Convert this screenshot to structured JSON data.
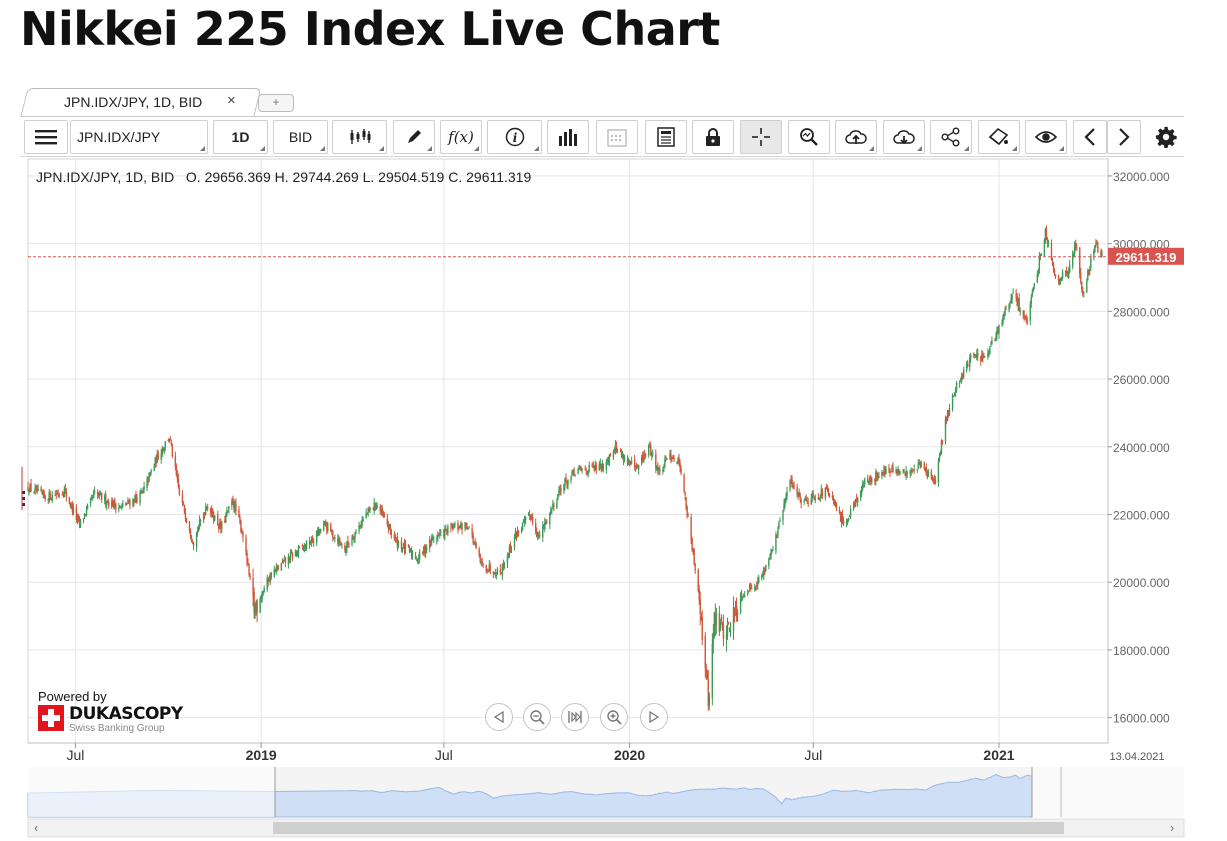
{
  "page": {
    "title": "Nikkei 225 Index Live Chart"
  },
  "tab": {
    "label": "JPN.IDX/JPY, 1D, BID",
    "close": "×",
    "add": "+"
  },
  "toolbar": {
    "symbol": "JPN.IDX/JPY",
    "period": "1D",
    "side": "BID",
    "icons": [
      "menu-icon",
      "candlestick-icon",
      "pencil-icon",
      "function-icon",
      "info-icon",
      "volume-bars-icon",
      "calendar-icon",
      "news-icon",
      "lock-icon",
      "crosshair-icon",
      "zoom-icon",
      "upload-icon",
      "download-icon",
      "share-icon",
      "theme-icon",
      "eye-icon",
      "arrow-left-icon",
      "arrow-right-icon",
      "gear-icon"
    ],
    "function_label": "f(x)",
    "info_label": "i"
  },
  "ohlc": {
    "text": "JPN.IDX/JPY, 1D, BID   O. 29656.369 H. 29744.269 L. 29504.519 C. 29611.319"
  },
  "branding": {
    "powered_by": "Powered by",
    "name": "DUKASCOPY",
    "sub": "Swiss Banking Group"
  },
  "colors": {
    "up": "#3c9a56",
    "down": "#d0573a",
    "last": "#d9534f",
    "navigator": "#cfdff5"
  },
  "chart_data": {
    "type": "candlestick",
    "series_name": "JPN.IDX/JPY",
    "last_price": 29611.319,
    "last_price_label": "29611.319",
    "last_date": "13.04.2021",
    "ylim": [
      15250,
      32500
    ],
    "yticks": [
      {
        "v": 16000,
        "label": "16000.000"
      },
      {
        "v": 18000,
        "label": "18000.000"
      },
      {
        "v": 20000,
        "label": "20000.000"
      },
      {
        "v": 22000,
        "label": "22000.000"
      },
      {
        "v": 24000,
        "label": "24000.000"
      },
      {
        "v": 26000,
        "label": "26000.000"
      },
      {
        "v": 28000,
        "label": "28000.000"
      },
      {
        "v": 30000,
        "label": "30000.000"
      },
      {
        "v": 32000,
        "label": "32000.000"
      }
    ],
    "xlim": [
      "2018-05-15",
      "2021-04-19"
    ],
    "xticks": [
      {
        "date": "2018-07-01",
        "label": "Jul",
        "bold": false
      },
      {
        "date": "2019-01-01",
        "label": "2019",
        "bold": true
      },
      {
        "date": "2019-07-01",
        "label": "Jul",
        "bold": false
      },
      {
        "date": "2020-01-01",
        "label": "2020",
        "bold": true
      },
      {
        "date": "2020-07-01",
        "label": "Jul",
        "bold": false
      },
      {
        "date": "2021-01-01",
        "label": "2021",
        "bold": true
      }
    ],
    "x_end_label": "13.04.2021",
    "path": [
      {
        "date": "2018-05-15",
        "close": 22800
      },
      {
        "date": "2018-06-01",
        "close": 22500
      },
      {
        "date": "2018-06-20",
        "close": 22700
      },
      {
        "date": "2018-07-05",
        "close": 21700
      },
      {
        "date": "2018-07-20",
        "close": 22600
      },
      {
        "date": "2018-08-15",
        "close": 22200
      },
      {
        "date": "2018-09-05",
        "close": 22600
      },
      {
        "date": "2018-09-20",
        "close": 23700
      },
      {
        "date": "2018-10-02",
        "close": 24300
      },
      {
        "date": "2018-10-12",
        "close": 22600
      },
      {
        "date": "2018-10-26",
        "close": 21200
      },
      {
        "date": "2018-11-08",
        "close": 22300
      },
      {
        "date": "2018-11-22",
        "close": 21600
      },
      {
        "date": "2018-12-04",
        "close": 22400
      },
      {
        "date": "2018-12-14",
        "close": 21400
      },
      {
        "date": "2018-12-25",
        "close": 19200
      },
      {
        "date": "2019-01-10",
        "close": 20200
      },
      {
        "date": "2019-02-01",
        "close": 20800
      },
      {
        "date": "2019-02-20",
        "close": 21200
      },
      {
        "date": "2019-03-05",
        "close": 21700
      },
      {
        "date": "2019-03-25",
        "close": 21000
      },
      {
        "date": "2019-04-15",
        "close": 22000
      },
      {
        "date": "2019-04-25",
        "close": 22300
      },
      {
        "date": "2019-05-15",
        "close": 21200
      },
      {
        "date": "2019-06-05",
        "close": 20700
      },
      {
        "date": "2019-06-20",
        "close": 21300
      },
      {
        "date": "2019-07-10",
        "close": 21600
      },
      {
        "date": "2019-07-25",
        "close": 21700
      },
      {
        "date": "2019-08-07",
        "close": 20500
      },
      {
        "date": "2019-08-26",
        "close": 20300
      },
      {
        "date": "2019-09-10",
        "close": 21400
      },
      {
        "date": "2019-09-25",
        "close": 22000
      },
      {
        "date": "2019-10-03",
        "close": 21300
      },
      {
        "date": "2019-10-25",
        "close": 22800
      },
      {
        "date": "2019-11-10",
        "close": 23300
      },
      {
        "date": "2019-12-05",
        "close": 23400
      },
      {
        "date": "2019-12-17",
        "close": 24000
      },
      {
        "date": "2020-01-08",
        "close": 23300
      },
      {
        "date": "2020-01-20",
        "close": 24000
      },
      {
        "date": "2020-01-31",
        "close": 23200
      },
      {
        "date": "2020-02-10",
        "close": 23800
      },
      {
        "date": "2020-02-20",
        "close": 23500
      },
      {
        "date": "2020-03-02",
        "close": 21200
      },
      {
        "date": "2020-03-10",
        "close": 19600
      },
      {
        "date": "2020-03-19",
        "close": 16500
      },
      {
        "date": "2020-03-25",
        "close": 18900
      },
      {
        "date": "2020-04-06",
        "close": 18500
      },
      {
        "date": "2020-04-20",
        "close": 19600
      },
      {
        "date": "2020-05-10",
        "close": 20100
      },
      {
        "date": "2020-05-25",
        "close": 21300
      },
      {
        "date": "2020-06-08",
        "close": 23000
      },
      {
        "date": "2020-06-20",
        "close": 22400
      },
      {
        "date": "2020-07-15",
        "close": 22700
      },
      {
        "date": "2020-07-31",
        "close": 21700
      },
      {
        "date": "2020-08-20",
        "close": 22900
      },
      {
        "date": "2020-09-10",
        "close": 23300
      },
      {
        "date": "2020-09-30",
        "close": 23200
      },
      {
        "date": "2020-10-15",
        "close": 23500
      },
      {
        "date": "2020-10-30",
        "close": 22900
      },
      {
        "date": "2020-11-09",
        "close": 24800
      },
      {
        "date": "2020-11-20",
        "close": 25800
      },
      {
        "date": "2020-12-05",
        "close": 26700
      },
      {
        "date": "2020-12-20",
        "close": 26600
      },
      {
        "date": "2020-12-30",
        "close": 27400
      },
      {
        "date": "2021-01-15",
        "close": 28500
      },
      {
        "date": "2021-01-29",
        "close": 27700
      },
      {
        "date": "2021-02-16",
        "close": 30400
      },
      {
        "date": "2021-02-26",
        "close": 29000
      },
      {
        "date": "2021-03-10",
        "close": 29100
      },
      {
        "date": "2021-03-18",
        "close": 30000
      },
      {
        "date": "2021-03-25",
        "close": 28500
      },
      {
        "date": "2021-04-06",
        "close": 30000
      },
      {
        "date": "2021-04-13",
        "close": 29611
      }
    ]
  }
}
